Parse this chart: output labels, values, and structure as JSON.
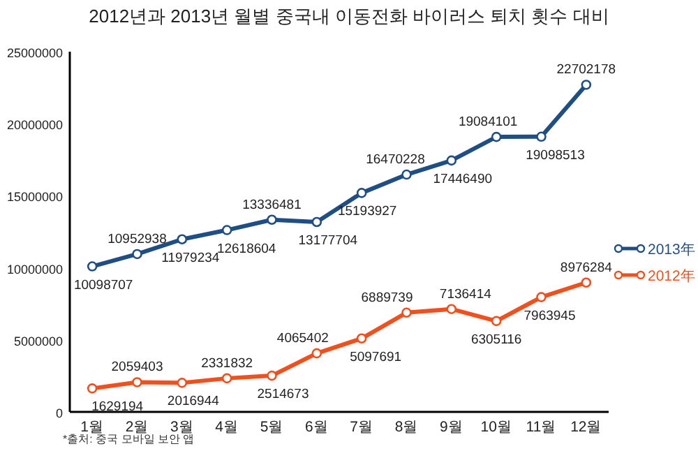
{
  "chart_data": {
    "type": "line",
    "title": "2012년과 2013년 월별 중국내 이동전화 바이러스 퇴치 횟수 대비",
    "categories": [
      "1월",
      "2월",
      "3월",
      "4월",
      "5월",
      "6월",
      "7월",
      "8월",
      "9월",
      "10월",
      "11월",
      "12월"
    ],
    "series": [
      {
        "name": "2013年",
        "color": "#1f4e85",
        "values": [
          10098707,
          10952938,
          11979234,
          12618604,
          13336481,
          13177704,
          15193927,
          16470228,
          17446490,
          19084101,
          19098513,
          22702178
        ]
      },
      {
        "name": "2012年",
        "color": "#f0501e",
        "values": [
          1629194,
          2059403,
          2016944,
          2331832,
          2514673,
          4065402,
          5097691,
          6889739,
          7136414,
          6305116,
          7963945,
          8976284
        ]
      }
    ],
    "ylim": [
      0,
      25000000
    ],
    "yticks": [
      0,
      5000000,
      10000000,
      15000000,
      20000000,
      25000000
    ],
    "data_labels": true,
    "marker": "circle",
    "legend": "right",
    "annotations": [
      "*출처: 중국 모바일 보안 앱"
    ]
  }
}
